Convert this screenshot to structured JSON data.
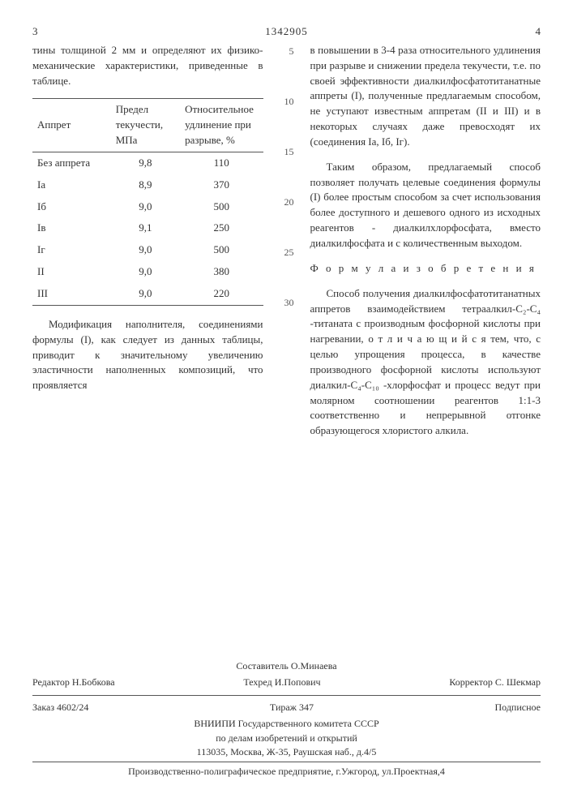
{
  "header": {
    "left_page": "3",
    "right_page": "4",
    "doc_number": "1342905"
  },
  "left": {
    "intro": "тины толщиной 2 мм и определяют их физико-механические характеристики, приведенные в таблице.",
    "table": {
      "columns": [
        "Аппрет",
        "Предел текучести, МПа",
        "Относительное удлинение при разрыве, %"
      ],
      "rows": [
        [
          "Без аппрета",
          "9,8",
          "110"
        ],
        [
          "Iа",
          "8,9",
          "370"
        ],
        [
          "Iб",
          "9,0",
          "500"
        ],
        [
          "Iв",
          "9,1",
          "250"
        ],
        [
          "Iг",
          "9,0",
          "500"
        ],
        [
          "II",
          "9,0",
          "380"
        ],
        [
          "III",
          "9,0",
          "220"
        ]
      ]
    },
    "after_table": "Модификация наполнителя, соединениями формулы (I), как следует из данных таблицы, приводит к значительному увеличению эластичности наполненных композиций, что проявляется"
  },
  "line_nums": [
    "5",
    "10",
    "15",
    "20",
    "25",
    "30"
  ],
  "right": {
    "p1": "в повышении в 3-4 раза относительного удлинения при разрыве и снижении предела текучести, т.е. по своей эффективности диалкилфосфатотитанатные аппреты (I), полученные предлагаемым способом, не уступают известным аппретам (II и III) и в некоторых случаях даже превосходят их (соединения Iа, Iб, Iг).",
    "p2": "Таким образом, предлагаемый способ позволяет получать целевые соединения формулы (I) более простым способом за счет использования более доступного и дешевого одного из исходных реагентов - диалкилхлорфосфата, вместо диалкилфосфата и с количественным выходом.",
    "formula_title": "Ф о р м у л а   и з о б р е т е н и я",
    "p3": "Способ получения диалкилфосфатотитанатных аппретов взаимодействием тетраалкил-С₂-С₄ -титаната с производным фосфорной кислоты при нагревании, о т л и ч а ю щ и й с я  тем, что, с целью упрощения процесса, в качестве производного фосфорной кислоты используют диалкил-С₄-С₁₀ -хлорфосфат и процесс ведут при молярном соотношении реагентов 1:1-3 соответственно и непрерывной отгонке образующегося хлористого алкила."
  },
  "footer": {
    "composer_label": "Составитель",
    "composer": "О.Минаева",
    "editor_label": "Редактор",
    "editor": "Н.Бобкова",
    "techred_label": "Техред",
    "techred": "И.Попович",
    "corrector_label": "Корректор",
    "corrector": "С. Шекмар",
    "order": "Заказ 4602/24",
    "tirage": "Тираж  347",
    "sub": "Подписное",
    "org1": "ВНИИПИ Государственного комитета СССР",
    "org2": "по делам изобретений и открытий",
    "addr": "113035, Москва, Ж-35, Раушская наб., д.4/5",
    "prod": "Производственно-полиграфическое предприятие, г.Ужгород, ул.Проектная,4"
  }
}
